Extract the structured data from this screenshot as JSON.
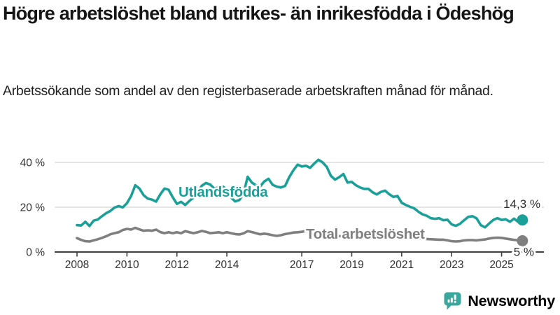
{
  "header": {
    "title": "Högre arbetslöshet bland utrikes- än inrikesfödda i Ödeshög",
    "subtitle": "Arbetssökande som andel av den registerbaserade arbetskraften månad för månad."
  },
  "footer": {
    "brand": "Newsworthy",
    "logo_icon": "bar-chart-speech-bubble-icon"
  },
  "colors": {
    "foreign_born_line": "#1aa098",
    "total_line": "#7f7f7f",
    "title_text": "#151515",
    "axis_text": "#333333",
    "gridline": "#dcdcdc",
    "axis_line": "#3f3f3f",
    "value_label_text": "#2d2d2d",
    "brand_icon": "#3aa79c",
    "brand_text": "#3d8a92"
  },
  "chart_data": {
    "type": "line",
    "unit": "%",
    "x_start_year": 2008.0,
    "x_step_months": 2,
    "xlim": [
      2008.0,
      2025.833
    ],
    "ylim": [
      0,
      44
    ],
    "grid": "horizontal",
    "legend_position": "inline-labels",
    "x_ticks": [
      {
        "year": 2008,
        "label": "2008"
      },
      {
        "year": 2010,
        "label": "2010"
      },
      {
        "year": 2012,
        "label": "2012"
      },
      {
        "year": 2014,
        "label": "2014"
      },
      {
        "year": 2017,
        "label": "2017"
      },
      {
        "year": 2019,
        "label": "2019"
      },
      {
        "year": 2021,
        "label": "2021"
      },
      {
        "year": 2023,
        "label": "2023"
      },
      {
        "year": 2025,
        "label": "2025"
      }
    ],
    "y_ticks": [
      {
        "value": 0,
        "label": "0 %"
      },
      {
        "value": 20,
        "label": "20 %"
      },
      {
        "value": 40,
        "label": "40 %"
      }
    ],
    "series": [
      {
        "name": "Utlandsfödda",
        "color": "#1aa098",
        "end_label": "14,3 %",
        "end_value": 14.3,
        "values": [
          12.0,
          11.8,
          13.5,
          11.6,
          14.0,
          14.5,
          16.0,
          17.3,
          18.3,
          19.8,
          20.5,
          19.9,
          21.8,
          25.0,
          29.8,
          28.3,
          25.4,
          23.8,
          23.4,
          22.5,
          25.7,
          28.3,
          27.8,
          24.4,
          21.5,
          22.4,
          21.0,
          22.8,
          24.3,
          26.9,
          29.6,
          30.8,
          30.1,
          28.3,
          28.8,
          29.3,
          27.8,
          24.3,
          22.6,
          23.2,
          26.0,
          33.6,
          31.0,
          29.8,
          29.3,
          31.5,
          32.7,
          30.0,
          29.2,
          28.8,
          29.5,
          33.5,
          36.5,
          39.0,
          38.2,
          38.5,
          37.6,
          39.5,
          41.2,
          40.0,
          38.0,
          34.0,
          32.3,
          33.4,
          34.8,
          31.0,
          31.3,
          29.8,
          28.8,
          28.2,
          28.2,
          26.7,
          25.7,
          26.8,
          27.4,
          25.8,
          24.6,
          25.0,
          22.0,
          21.0,
          20.2,
          19.5,
          18.0,
          16.8,
          16.2,
          15.1,
          14.8,
          15.1,
          14.2,
          14.4,
          12.3,
          11.7,
          12.6,
          14.2,
          15.7,
          16.0,
          15.0,
          12.0,
          11.0,
          12.7,
          14.3,
          15.1,
          14.3,
          14.6,
          13.5,
          14.9,
          13.4,
          14.3
        ]
      },
      {
        "name": "Total arbetslöshet",
        "color": "#7f7f7f",
        "end_label": "5 %",
        "end_value": 5,
        "values": [
          6.2,
          5.4,
          4.8,
          4.7,
          5.2,
          5.7,
          6.3,
          7.0,
          7.9,
          8.4,
          8.8,
          9.8,
          10.3,
          10.0,
          10.8,
          10.1,
          9.5,
          9.7,
          9.5,
          10.0,
          8.9,
          8.4,
          8.8,
          8.4,
          8.8,
          8.4,
          9.3,
          8.8,
          8.4,
          8.8,
          9.4,
          9.0,
          8.4,
          8.6,
          8.8,
          8.4,
          8.8,
          8.4,
          8.0,
          7.8,
          8.3,
          9.3,
          8.9,
          8.4,
          7.9,
          8.2,
          7.9,
          7.5,
          7.2,
          7.5,
          8.0,
          8.3,
          8.7,
          8.8,
          9.0,
          9.4,
          8.9,
          8.6,
          8.3,
          8.0,
          7.7,
          7.5,
          7.3,
          7.1,
          7.0,
          6.8,
          6.6,
          6.5,
          6.4,
          6.3,
          6.3,
          6.4,
          6.5,
          7.0,
          7.4,
          7.3,
          7.2,
          7.2,
          7.0,
          6.8,
          6.6,
          6.4,
          6.2,
          6.0,
          5.8,
          5.7,
          5.6,
          5.5,
          5.5,
          5.2,
          4.8,
          4.7,
          4.8,
          5.2,
          5.3,
          5.3,
          5.2,
          5.4,
          5.6,
          6.0,
          6.3,
          6.4,
          6.3,
          6.0,
          5.7,
          5.4,
          5.2,
          5.0
        ]
      }
    ]
  }
}
